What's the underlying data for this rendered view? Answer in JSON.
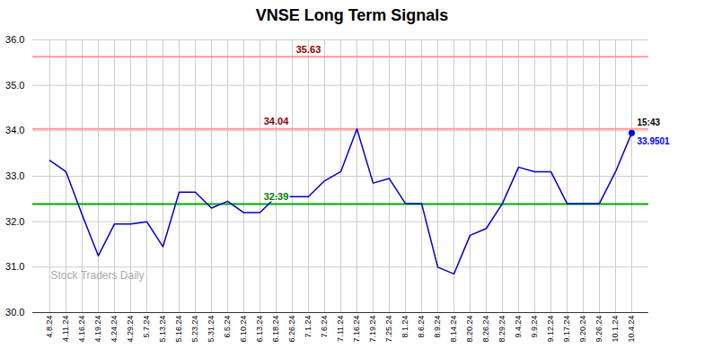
{
  "chart_data": {
    "type": "line",
    "title": "VNSE Long Term Signals",
    "categories": [
      "4.8.24",
      "4.11.24",
      "4.16.24",
      "4.19.24",
      "4.24.24",
      "4.29.24",
      "5.7.24",
      "5.13.24",
      "5.16.24",
      "5.23.24",
      "5.31.24",
      "6.5.24",
      "6.10.24",
      "6.13.24",
      "6.18.24",
      "6.26.24",
      "7.1.24",
      "7.6.24",
      "7.11.24",
      "7.16.24",
      "7.19.24",
      "7.25.24",
      "8.1.24",
      "8.6.24",
      "8.9.24",
      "8.14.24",
      "8.20.24",
      "8.26.24",
      "8.29.24",
      "9.4.24",
      "9.9.24",
      "9.12.24",
      "9.17.24",
      "9.20.24",
      "9.26.24",
      "10.1.24",
      "10.4.24"
    ],
    "values": [
      33.35,
      33.1,
      32.15,
      31.25,
      31.95,
      31.95,
      32.0,
      31.45,
      32.65,
      32.65,
      32.3,
      32.45,
      32.2,
      32.2,
      32.55,
      32.55,
      32.55,
      32.9,
      33.1,
      34.04,
      32.85,
      32.95,
      32.4,
      32.4,
      31.0,
      30.85,
      31.7,
      31.85,
      32.4,
      33.2,
      33.1,
      33.1,
      32.4,
      32.4,
      32.4,
      33.1,
      33.95
    ],
    "color": "#0000cc",
    "ylim": [
      30,
      36
    ],
    "yticks": [
      30,
      31,
      32,
      33,
      34,
      35,
      36
    ],
    "grid": true,
    "reference_lines": [
      {
        "value": 35.63,
        "color": "#ff9999",
        "label": "35.63",
        "label_color": "darkred",
        "label_x": "7.1.24"
      },
      {
        "value": 34.04,
        "color": "#ff9999",
        "label": "34.04",
        "label_color": "darkred",
        "label_x": "6.18.24"
      },
      {
        "value": 32.39,
        "color": "#00aa00",
        "label": "32.39",
        "label_color": "green",
        "label_x": "6.18.24"
      }
    ],
    "annotations": [
      {
        "text": "15:43",
        "color": "black",
        "anchor": "last_point",
        "position": "above"
      },
      {
        "text": "33.9501",
        "color": "blue",
        "anchor": "last_point",
        "position": "below"
      },
      {
        "text": "Stock Traders Daily",
        "color": "#aaaaaa",
        "anchor": "bottom_left"
      }
    ]
  }
}
